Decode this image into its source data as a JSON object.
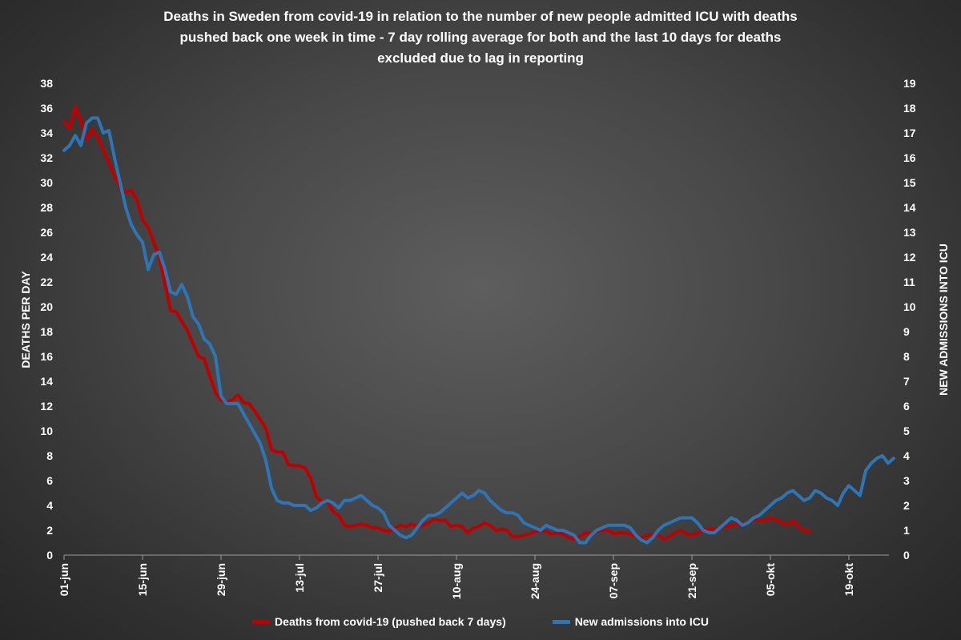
{
  "chart_data": {
    "type": "line",
    "title_lines": [
      "Deaths in Sweden from covid-19 in relation to the number of new people admitted ICU with deaths",
      "pushed back one week in time - 7 day rolling average for both and the last 10 days for deaths",
      "excluded due to lag in reporting"
    ],
    "ylabel": "DEATHS PER DAY",
    "y2label": "NEW ADMISSIONS INTO ICU",
    "ylim": [
      0,
      38
    ],
    "y2lim": [
      0,
      19
    ],
    "yticks": [
      0,
      2,
      4,
      6,
      8,
      10,
      12,
      14,
      16,
      18,
      20,
      22,
      24,
      26,
      28,
      30,
      32,
      34,
      36,
      38
    ],
    "y2ticks": [
      0,
      1,
      2,
      3,
      4,
      5,
      6,
      7,
      8,
      9,
      10,
      11,
      12,
      13,
      14,
      15,
      16,
      17,
      18,
      19
    ],
    "x_day_range": [
      0,
      146
    ],
    "x_ticks": [
      {
        "day": 0,
        "label": "01-jun"
      },
      {
        "day": 14,
        "label": "15-jun"
      },
      {
        "day": 28,
        "label": "29-jun"
      },
      {
        "day": 42,
        "label": "13-jul"
      },
      {
        "day": 56,
        "label": "27-jul"
      },
      {
        "day": 70,
        "label": "10-aug"
      },
      {
        "day": 84,
        "label": "24-aug"
      },
      {
        "day": 98,
        "label": "07-sep"
      },
      {
        "day": 112,
        "label": "21-sep"
      },
      {
        "day": 126,
        "label": "05-okt"
      },
      {
        "day": 140,
        "label": "19-okt"
      }
    ],
    "series": [
      {
        "name": "Deaths from covid-19 (pushed back 7 days)",
        "color": "#c00000",
        "axis": "left",
        "points": [
          [
            0,
            34.9
          ],
          [
            1,
            34.4
          ],
          [
            2,
            36.1
          ],
          [
            3,
            35.0
          ],
          [
            4,
            33.5
          ],
          [
            5,
            34.3
          ],
          [
            6,
            33.6
          ],
          [
            7,
            32.6
          ],
          [
            8,
            31.6
          ],
          [
            9,
            30.5
          ],
          [
            10,
            29.7
          ],
          [
            11,
            29.2
          ],
          [
            12,
            29.4
          ],
          [
            13,
            28.6
          ],
          [
            14,
            27.0
          ],
          [
            15,
            26.4
          ],
          [
            16,
            25.2
          ],
          [
            17,
            24.0
          ],
          [
            18,
            21.8
          ],
          [
            19,
            19.7
          ],
          [
            20,
            19.6
          ],
          [
            21,
            18.8
          ],
          [
            22,
            18.1
          ],
          [
            23,
            17.0
          ],
          [
            24,
            16.0
          ],
          [
            25,
            15.8
          ],
          [
            26,
            14.4
          ],
          [
            27,
            13.1
          ],
          [
            28,
            12.5
          ],
          [
            29,
            12.3
          ],
          [
            30,
            12.5
          ],
          [
            31,
            12.9
          ],
          [
            32,
            12.3
          ],
          [
            33,
            12.2
          ],
          [
            34,
            11.6
          ],
          [
            35,
            10.9
          ],
          [
            36,
            10.2
          ],
          [
            37,
            8.5
          ],
          [
            38,
            8.3
          ],
          [
            39,
            8.3
          ],
          [
            40,
            7.3
          ],
          [
            41,
            7.2
          ],
          [
            42,
            7.2
          ],
          [
            43,
            7.0
          ],
          [
            44,
            6.2
          ],
          [
            45,
            4.7
          ],
          [
            46,
            4.3
          ],
          [
            47,
            4.3
          ],
          [
            48,
            3.5
          ],
          [
            49,
            3.2
          ],
          [
            50,
            2.4
          ],
          [
            51,
            2.3
          ],
          [
            52,
            2.4
          ],
          [
            53,
            2.5
          ],
          [
            54,
            2.4
          ],
          [
            55,
            2.2
          ],
          [
            56,
            2.2
          ],
          [
            57,
            2.0
          ],
          [
            58,
            1.9
          ],
          [
            59,
            2.2
          ],
          [
            60,
            2.4
          ],
          [
            61,
            2.3
          ],
          [
            62,
            2.5
          ],
          [
            63,
            2.3
          ],
          [
            64,
            2.4
          ],
          [
            65,
            2.6
          ],
          [
            66,
            2.9
          ],
          [
            67,
            2.8
          ],
          [
            68,
            2.8
          ],
          [
            69,
            2.3
          ],
          [
            70,
            2.4
          ],
          [
            71,
            2.3
          ],
          [
            72,
            1.8
          ],
          [
            73,
            2.2
          ],
          [
            74,
            2.3
          ],
          [
            75,
            2.6
          ],
          [
            76,
            2.4
          ],
          [
            77,
            2.0
          ],
          [
            78,
            2.1
          ],
          [
            79,
            2.0
          ],
          [
            80,
            1.5
          ],
          [
            81,
            1.5
          ],
          [
            82,
            1.6
          ],
          [
            83,
            1.7
          ],
          [
            84,
            1.9
          ],
          [
            85,
            2.0
          ],
          [
            86,
            1.9
          ],
          [
            87,
            1.7
          ],
          [
            88,
            1.8
          ],
          [
            89,
            1.7
          ],
          [
            90,
            1.4
          ],
          [
            91,
            1.3
          ],
          [
            92,
            1.5
          ],
          [
            93,
            1.8
          ],
          [
            94,
            1.7
          ],
          [
            95,
            1.9
          ],
          [
            96,
            2.0
          ],
          [
            97,
            2.0
          ],
          [
            98,
            1.7
          ],
          [
            99,
            1.8
          ],
          [
            100,
            1.8
          ],
          [
            101,
            1.7
          ],
          [
            102,
            1.5
          ],
          [
            103,
            1.4
          ],
          [
            104,
            1.6
          ],
          [
            105,
            1.6
          ],
          [
            106,
            1.6
          ],
          [
            107,
            1.3
          ],
          [
            108,
            1.5
          ],
          [
            109,
            1.8
          ],
          [
            110,
            2.0
          ],
          [
            111,
            1.7
          ],
          [
            112,
            1.6
          ],
          [
            113,
            1.8
          ],
          [
            114,
            2.0
          ],
          [
            115,
            2.2
          ],
          [
            116,
            2.0
          ],
          [
            117,
            2.2
          ],
          [
            118,
            2.3
          ],
          [
            119,
            2.4
          ],
          [
            120,
            2.5
          ],
          [
            121,
            2.5
          ],
          [
            122,
            2.6
          ],
          [
            123,
            2.9
          ],
          [
            124,
            2.8
          ],
          [
            125,
            2.8
          ],
          [
            126,
            3.0
          ],
          [
            127,
            2.9
          ],
          [
            128,
            2.6
          ],
          [
            129,
            2.5
          ],
          [
            130,
            2.8
          ],
          [
            131,
            2.3
          ],
          [
            132,
            2.0
          ],
          [
            133,
            1.9
          ]
        ]
      },
      {
        "name": "New admissions into ICU",
        "color": "#2e75b6",
        "axis": "right",
        "points": [
          [
            0,
            16.3
          ],
          [
            1,
            16.5
          ],
          [
            2,
            16.9
          ],
          [
            3,
            16.5
          ],
          [
            4,
            17.4
          ],
          [
            5,
            17.6
          ],
          [
            6,
            17.6
          ],
          [
            7,
            17.0
          ],
          [
            8,
            17.1
          ],
          [
            9,
            16.0
          ],
          [
            10,
            15.0
          ],
          [
            11,
            14.0
          ],
          [
            12,
            13.3
          ],
          [
            13,
            12.9
          ],
          [
            14,
            12.6
          ],
          [
            15,
            11.5
          ],
          [
            16,
            12.1
          ],
          [
            17,
            12.2
          ],
          [
            18,
            11.5
          ],
          [
            19,
            10.6
          ],
          [
            20,
            10.5
          ],
          [
            21,
            10.9
          ],
          [
            22,
            10.4
          ],
          [
            23,
            9.6
          ],
          [
            24,
            9.3
          ],
          [
            25,
            8.7
          ],
          [
            26,
            8.5
          ],
          [
            27,
            8.0
          ],
          [
            28,
            6.4
          ],
          [
            29,
            6.1
          ],
          [
            30,
            6.1
          ],
          [
            31,
            6.1
          ],
          [
            32,
            5.7
          ],
          [
            33,
            5.3
          ],
          [
            34,
            4.9
          ],
          [
            35,
            4.5
          ],
          [
            36,
            3.8
          ],
          [
            37,
            2.7
          ],
          [
            38,
            2.2
          ],
          [
            39,
            2.1
          ],
          [
            40,
            2.1
          ],
          [
            41,
            2.0
          ],
          [
            42,
            2.0
          ],
          [
            43,
            2.0
          ],
          [
            44,
            1.8
          ],
          [
            45,
            1.9
          ],
          [
            46,
            2.1
          ],
          [
            47,
            2.2
          ],
          [
            48,
            2.1
          ],
          [
            49,
            1.9
          ],
          [
            50,
            2.2
          ],
          [
            51,
            2.2
          ],
          [
            52,
            2.3
          ],
          [
            53,
            2.4
          ],
          [
            54,
            2.2
          ],
          [
            55,
            2.0
          ],
          [
            56,
            1.9
          ],
          [
            57,
            1.7
          ],
          [
            58,
            1.2
          ],
          [
            59,
            1.0
          ],
          [
            60,
            0.8
          ],
          [
            61,
            0.7
          ],
          [
            62,
            0.8
          ],
          [
            63,
            1.1
          ],
          [
            64,
            1.4
          ],
          [
            65,
            1.6
          ],
          [
            66,
            1.6
          ],
          [
            67,
            1.7
          ],
          [
            68,
            1.9
          ],
          [
            69,
            2.1
          ],
          [
            70,
            2.3
          ],
          [
            71,
            2.5
          ],
          [
            72,
            2.3
          ],
          [
            73,
            2.4
          ],
          [
            74,
            2.6
          ],
          [
            75,
            2.5
          ],
          [
            76,
            2.2
          ],
          [
            77,
            2.0
          ],
          [
            78,
            1.8
          ],
          [
            79,
            1.7
          ],
          [
            80,
            1.7
          ],
          [
            81,
            1.6
          ],
          [
            82,
            1.3
          ],
          [
            83,
            1.2
          ],
          [
            84,
            1.1
          ],
          [
            85,
            1.0
          ],
          [
            86,
            1.2
          ],
          [
            87,
            1.1
          ],
          [
            88,
            1.0
          ],
          [
            89,
            1.0
          ],
          [
            90,
            0.9
          ],
          [
            91,
            0.8
          ],
          [
            92,
            0.5
          ],
          [
            93,
            0.5
          ],
          [
            94,
            0.8
          ],
          [
            95,
            1.0
          ],
          [
            96,
            1.1
          ],
          [
            97,
            1.2
          ],
          [
            98,
            1.2
          ],
          [
            99,
            1.2
          ],
          [
            100,
            1.2
          ],
          [
            101,
            1.1
          ],
          [
            102,
            0.8
          ],
          [
            103,
            0.6
          ],
          [
            104,
            0.5
          ],
          [
            105,
            0.7
          ],
          [
            106,
            1.0
          ],
          [
            107,
            1.2
          ],
          [
            108,
            1.3
          ],
          [
            109,
            1.4
          ],
          [
            110,
            1.5
          ],
          [
            111,
            1.5
          ],
          [
            112,
            1.5
          ],
          [
            113,
            1.3
          ],
          [
            114,
            1.0
          ],
          [
            115,
            0.9
          ],
          [
            116,
            0.9
          ],
          [
            117,
            1.1
          ],
          [
            118,
            1.3
          ],
          [
            119,
            1.5
          ],
          [
            120,
            1.4
          ],
          [
            121,
            1.2
          ],
          [
            122,
            1.3
          ],
          [
            123,
            1.5
          ],
          [
            124,
            1.6
          ],
          [
            125,
            1.8
          ],
          [
            126,
            2.0
          ],
          [
            127,
            2.2
          ],
          [
            128,
            2.3
          ],
          [
            129,
            2.5
          ],
          [
            130,
            2.6
          ],
          [
            131,
            2.4
          ],
          [
            132,
            2.2
          ],
          [
            133,
            2.3
          ],
          [
            134,
            2.6
          ],
          [
            135,
            2.5
          ],
          [
            136,
            2.3
          ],
          [
            137,
            2.2
          ],
          [
            138,
            2.0
          ],
          [
            139,
            2.5
          ],
          [
            140,
            2.8
          ],
          [
            141,
            2.6
          ],
          [
            142,
            2.4
          ],
          [
            143,
            3.4
          ],
          [
            144,
            3.7
          ],
          [
            145,
            3.9
          ],
          [
            146,
            4.0
          ],
          [
            147,
            3.7
          ],
          [
            148,
            3.9
          ]
        ]
      }
    ]
  }
}
